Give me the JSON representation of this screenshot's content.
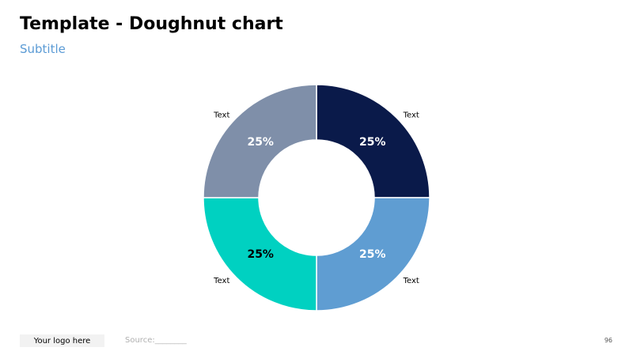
{
  "header": {
    "title": "Template - Doughnut chart",
    "subtitle": "Subtitle"
  },
  "chart_data": {
    "type": "pie",
    "donut": true,
    "segments": [
      {
        "label": "Text",
        "value": 25,
        "value_label": "25%",
        "color": "#0a1a4a",
        "label_color": "#ffffff"
      },
      {
        "label": "Text",
        "value": 25,
        "value_label": "25%",
        "color": "#5f9dd2",
        "label_color": "#ffffff"
      },
      {
        "label": "Text",
        "value": 25,
        "value_label": "25%",
        "color": "#00d1c1",
        "label_color": "#000000"
      },
      {
        "label": "Text",
        "value": 25,
        "value_label": "25%",
        "color": "#7f8fa9",
        "label_color": "#ffffff"
      }
    ]
  },
  "footer": {
    "logo": "Your logo here",
    "source": "Source:________",
    "page_number": "96"
  }
}
